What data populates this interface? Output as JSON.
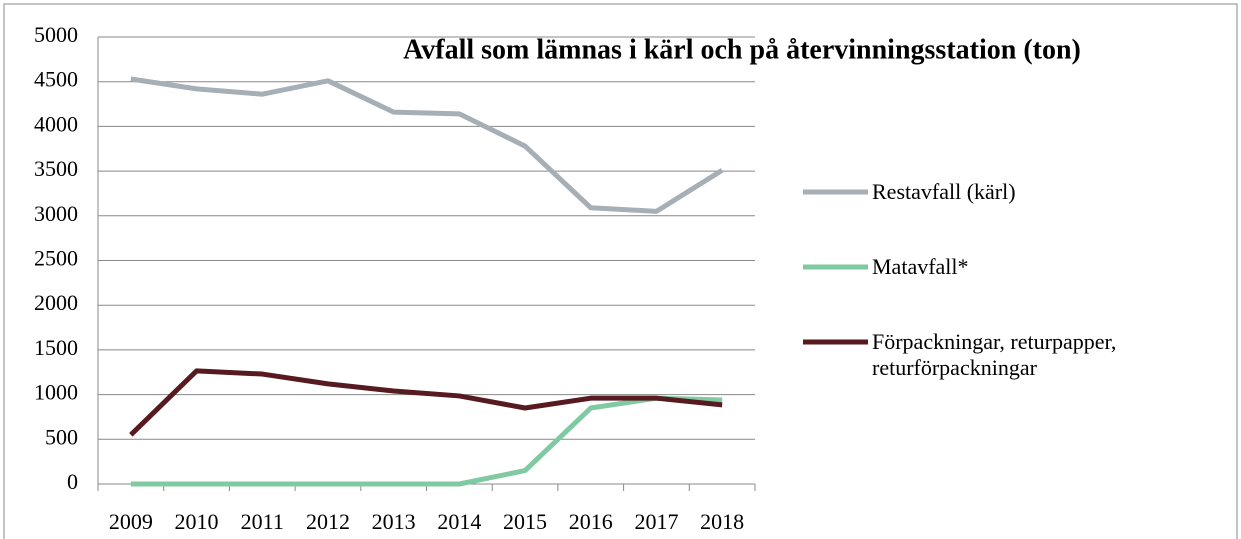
{
  "chart_data": {
    "type": "line",
    "title": "Avfall som lämnas i kärl och på återvinningsstation (ton)",
    "categories": [
      "2009",
      "2010",
      "2011",
      "2012",
      "2013",
      "2014",
      "2015",
      "2016",
      "2017",
      "2018"
    ],
    "series": [
      {
        "name": "Restavfall (kärl)",
        "color": "#a6aeb6",
        "values": [
          4530,
          4420,
          4360,
          4510,
          4160,
          4140,
          3780,
          3090,
          3050,
          3510
        ]
      },
      {
        "name": "Matavfall*",
        "color": "#7fcaa2",
        "values": [
          0,
          0,
          0,
          0,
          0,
          0,
          150,
          850,
          960,
          940
        ]
      },
      {
        "name": "Förpackningar, returpapper, returförpackningar",
        "color": "#561a20",
        "values": [
          550,
          1265,
          1230,
          1120,
          1040,
          985,
          850,
          960,
          960,
          885
        ]
      }
    ],
    "ylim": [
      0,
      5000
    ],
    "yticks": [
      0,
      500,
      1000,
      1500,
      2000,
      2500,
      3000,
      3500,
      4000,
      4500,
      5000
    ],
    "grid": true,
    "legend": "right"
  }
}
